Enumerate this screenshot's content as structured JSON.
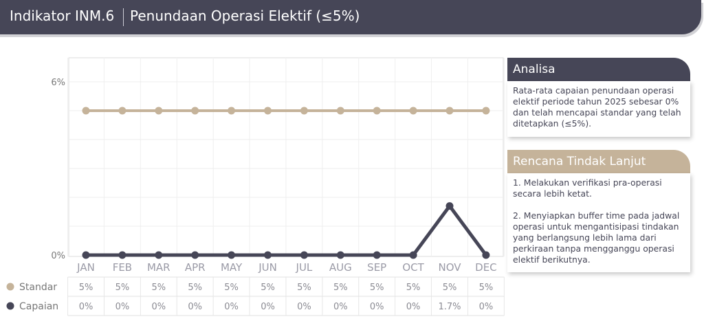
{
  "header": {
    "indicator": "Indikator INM.6",
    "title": "Penundaan Operasi Elektif (≤5%)"
  },
  "chart_data": {
    "type": "line",
    "categories": [
      "JAN",
      "FEB",
      "MAR",
      "APR",
      "MAY",
      "JUN",
      "JUL",
      "AUG",
      "SEP",
      "OCT",
      "NOV",
      "DEC"
    ],
    "y_ticks": [
      "6%",
      "0%"
    ],
    "ylim": [
      0,
      6
    ],
    "grid": true,
    "legend_placement": "left of data table",
    "series": [
      {
        "name": "Standar",
        "color": "#c5b39a",
        "values": [
          5,
          5,
          5,
          5,
          5,
          5,
          5,
          5,
          5,
          5,
          5,
          5
        ],
        "labels": [
          "5%",
          "5%",
          "5%",
          "5%",
          "5%",
          "5%",
          "5%",
          "5%",
          "5%",
          "5%",
          "5%",
          "5%"
        ]
      },
      {
        "name": "Capaian",
        "color": "#464657",
        "values": [
          0,
          0,
          0,
          0,
          0,
          0,
          0,
          0,
          0,
          0,
          1.7,
          0
        ],
        "labels": [
          "0%",
          "0%",
          "0%",
          "0%",
          "0%",
          "0%",
          "0%",
          "0%",
          "0%",
          "0%",
          "1.7%",
          "0%"
        ]
      }
    ]
  },
  "analisa": {
    "title": "Analisa",
    "text": "Rata-rata capaian penundaan operasi elektif periode tahun 2025 sebesar 0% dan telah mencapai standar yang telah ditetapkan (≤5%)."
  },
  "rencana": {
    "title": "Rencana Tindak Lanjut",
    "item1": "1. Melakukan verifikasi pra-operasi secara lebih ketat.",
    "item2": "2. Menyiapkan buffer time pada jadwal operasi untuk mengantisipasi tindakan yang berlangsung lebih lama dari perkiraan tanpa mengganggu operasi elektif berikutnya."
  },
  "colors": {
    "header_bg": "#464657",
    "accent_tan": "#c5b39a",
    "grid": "#e2e2e2"
  }
}
